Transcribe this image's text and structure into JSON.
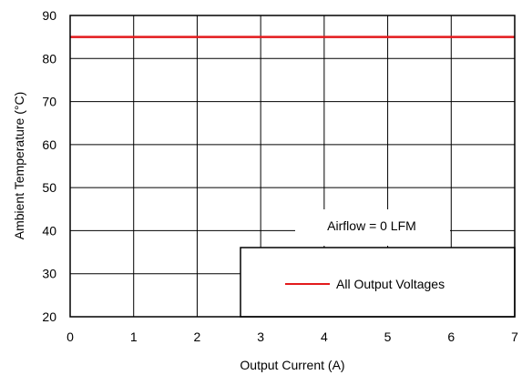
{
  "chart_data": {
    "type": "line",
    "xlabel": "Output Current (A)",
    "ylabel": "Ambient Temperature (°C)",
    "xlim": [
      0,
      7
    ],
    "ylim": [
      20,
      90
    ],
    "x_ticks": [
      "0",
      "1",
      "2",
      "3",
      "4",
      "5",
      "6",
      "7"
    ],
    "y_ticks": [
      "20",
      "30",
      "40",
      "50",
      "60",
      "70",
      "80",
      "90"
    ],
    "grid": true,
    "series": [
      {
        "name": "All Output Voltages",
        "color": "#e31a1c",
        "x": [
          0,
          7
        ],
        "y": [
          85,
          85
        ]
      }
    ],
    "annotation": "Airflow = 0 LFM",
    "legend_placement": "bottom-right"
  }
}
